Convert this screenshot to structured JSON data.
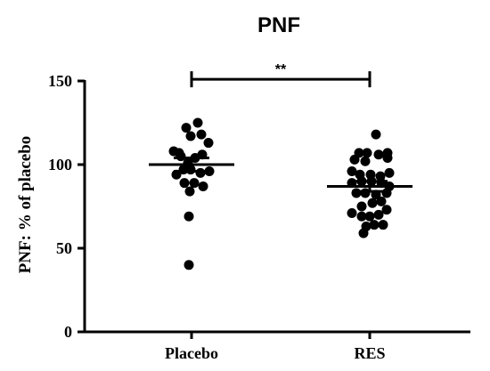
{
  "chart_data": {
    "type": "scatter",
    "title": "PNF",
    "ylabel": "PNF: % of placebo",
    "xlabel": "",
    "ylim": [
      0,
      150
    ],
    "yticks": [
      0,
      50,
      100,
      150
    ],
    "categories": [
      "Placebo",
      "RES"
    ],
    "series": [
      {
        "category": "Placebo",
        "mean": 100,
        "sem": [
          96,
          104
        ],
        "points": [
          [
            -0.2,
            108
          ],
          [
            -0.14,
            107
          ],
          [
            -0.06,
            122
          ],
          [
            0.07,
            125
          ],
          [
            -0.12,
            105
          ],
          [
            -0.04,
            101
          ],
          [
            0.04,
            104
          ],
          [
            0.12,
            106
          ],
          [
            -0.01,
            117
          ],
          [
            0.11,
            118
          ],
          [
            0.19,
            113
          ],
          [
            -0.17,
            94
          ],
          [
            -0.09,
            97
          ],
          [
            -0.01,
            97
          ],
          [
            0.1,
            95
          ],
          [
            0.2,
            96
          ],
          [
            -0.08,
            89
          ],
          [
            0.03,
            89
          ],
          [
            0.13,
            87
          ],
          [
            -0.02,
            84
          ],
          [
            -0.03,
            69
          ],
          [
            -0.03,
            40
          ]
        ]
      },
      {
        "category": "RES",
        "mean": 87,
        "sem": [
          84,
          90
        ],
        "points": [
          [
            -0.12,
            107
          ],
          [
            -0.03,
            107
          ],
          [
            0.1,
            106
          ],
          [
            0.2,
            107
          ],
          [
            0.07,
            118
          ],
          [
            0.2,
            104
          ],
          [
            -0.17,
            103
          ],
          [
            -0.05,
            102
          ],
          [
            -0.2,
            96
          ],
          [
            -0.11,
            94
          ],
          [
            0.01,
            94
          ],
          [
            0.12,
            93
          ],
          [
            0.22,
            95
          ],
          [
            -0.2,
            89
          ],
          [
            -0.09,
            90
          ],
          [
            0.02,
            90
          ],
          [
            0.13,
            89
          ],
          [
            0.22,
            87
          ],
          [
            -0.15,
            83
          ],
          [
            -0.05,
            83
          ],
          [
            0.07,
            82
          ],
          [
            0.19,
            83
          ],
          [
            -0.09,
            75
          ],
          [
            0.03,
            77
          ],
          [
            0.13,
            78
          ],
          [
            -0.2,
            71
          ],
          [
            -0.09,
            69
          ],
          [
            0.0,
            69
          ],
          [
            0.1,
            70
          ],
          [
            0.19,
            73
          ],
          [
            -0.04,
            63
          ],
          [
            0.05,
            64
          ],
          [
            0.15,
            64
          ],
          [
            -0.07,
            59
          ]
        ]
      }
    ],
    "significance": {
      "between": [
        "Placebo",
        "RES"
      ],
      "label": "**",
      "y": 151
    }
  }
}
